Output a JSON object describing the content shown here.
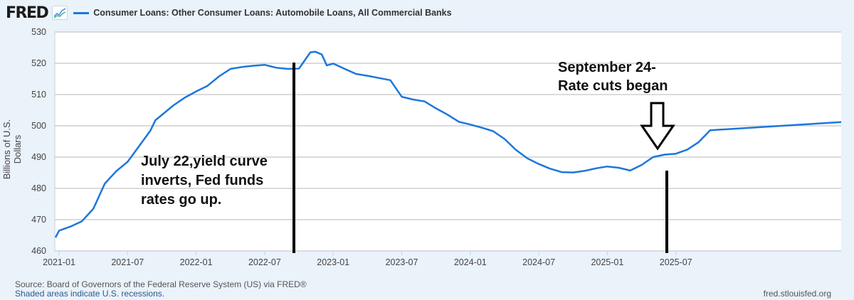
{
  "header": {
    "logo": "FRED",
    "logo_icon": "line-chart-icon",
    "series_title": "Consumer Loans: Other Consumer Loans: Automobile Loans, All Commercial Banks",
    "series_color": "#1d76db"
  },
  "chart_data": {
    "type": "line",
    "title": "Consumer Loans: Other Consumer Loans: Automobile Loans, All Commercial Banks",
    "xlabel": "",
    "ylabel": "Billions of U.S. Dollars",
    "ylim": [
      460,
      530
    ],
    "yticks": [
      460,
      470,
      480,
      490,
      500,
      510,
      520,
      530
    ],
    "xticks": [
      "2021-01",
      "2021-07",
      "2022-01",
      "2022-07",
      "2023-01",
      "2023-07",
      "2024-01",
      "2024-07",
      "2025-01",
      "2025-07"
    ],
    "grid": true,
    "legend_position": "top",
    "series": [
      {
        "name": "Consumer Loans: Other Consumer Loans: Automobile Loans, All Commercial Banks",
        "color": "#1d76db",
        "x": [
          "2020-12",
          "2021-01",
          "2021-02",
          "2021-03",
          "2021-04",
          "2021-05",
          "2021-06",
          "2021-07",
          "2021-08",
          "2021-09",
          "2021-09",
          "2021-10",
          "2021-11",
          "2021-12",
          "2022-01",
          "2022-02",
          "2022-03",
          "2022-04",
          "2022-05",
          "2022-06",
          "2022-07",
          "2022-08",
          "2022-09",
          "2022-10",
          "2022-11",
          "2022-11",
          "2022-12",
          "2022-12",
          "2023-01",
          "2023-02",
          "2023-03",
          "2023-04",
          "2023-05",
          "2023-06",
          "2023-07",
          "2023-08",
          "2023-09",
          "2023-10",
          "2023-11",
          "2023-12",
          "2024-01",
          "2024-02",
          "2024-03",
          "2024-04",
          "2024-05",
          "2024-06",
          "2024-07",
          "2024-08",
          "2024-09",
          "2024-10",
          "2024-11",
          "2024-12",
          "2025-01",
          "2025-02",
          "2025-03",
          "2025-04",
          "2025-05",
          "2025-06",
          "2025-07",
          "2025-08",
          "2025-09",
          "2025-10",
          "2025-11"
        ],
        "values": [
          464.3,
          466.5,
          467.8,
          469.5,
          473.5,
          481.5,
          485.5,
          488.5,
          493.5,
          498.5,
          501.8,
          503.5,
          506.5,
          509.0,
          511.0,
          512.8,
          515.8,
          518.2,
          518.8,
          519.2,
          519.5,
          518.6,
          518.2,
          518.3,
          523.5,
          523.7,
          522.8,
          519.3,
          519.9,
          518.2,
          516.6,
          516.0,
          515.3,
          514.6,
          509.3,
          508.4,
          507.8,
          505.6,
          503.6,
          501.3,
          500.4,
          499.4,
          498.3,
          495.8,
          492.3,
          489.6,
          487.8,
          486.3,
          485.2,
          485.1,
          485.6,
          486.4,
          487.0,
          486.6,
          485.7,
          487.5,
          490.0,
          490.8,
          491.1,
          492.4,
          494.8,
          498.6,
          501.2
        ]
      }
    ],
    "annotations": [
      {
        "text": "July 22,yield curve inverts, Fed funds rates go up.",
        "x": "2022-07"
      },
      {
        "text": "September 24- Rate cuts began",
        "x": "2024-11",
        "marker": "down-arrow"
      }
    ]
  },
  "annotations": {
    "left_text": "July 22,yield curve inverts, Fed funds rates go up.",
    "right_text_line1": "September 24-",
    "right_text_line2": "Rate cuts began"
  },
  "footer": {
    "source": "Source: Board of Governors of the Federal Reserve System (US) via FRED®",
    "recessions": "Shaded areas indicate U.S. recessions.",
    "site": "fred.stlouisfed.org"
  }
}
